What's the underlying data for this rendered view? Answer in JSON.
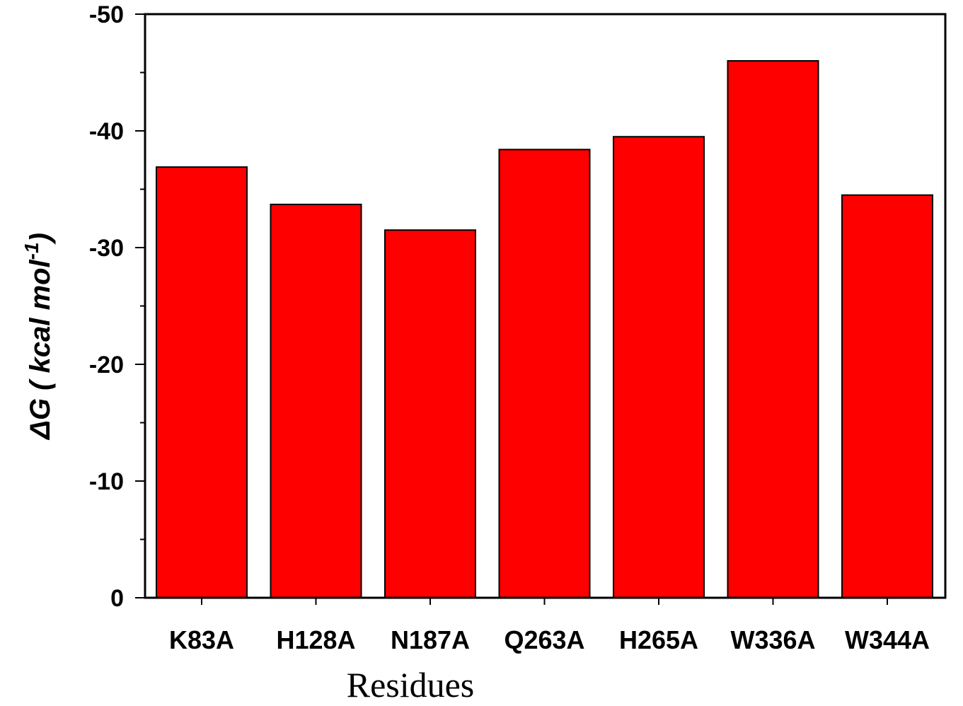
{
  "chart_data": {
    "type": "bar",
    "categories": [
      "K83A",
      "H128A",
      "N187A",
      "Q263A",
      "H265A",
      "W336A",
      "W344A"
    ],
    "series": [
      {
        "values": [
          -36.9,
          -33.7,
          -31.5,
          -38.4,
          -39.5,
          -46.0,
          -34.5
        ]
      }
    ],
    "xlabel": "Residues",
    "ylabel": "ΔG ( kcal mol⁻¹)",
    "ylabel_parts": {
      "main": "ΔG ( kcal mol",
      "sup": "-1",
      "close": ")"
    },
    "ylim": [
      0,
      -50
    ],
    "yticks": [
      0,
      -10,
      -20,
      -30,
      -40,
      -50
    ],
    "ytick_labels": [
      "0",
      "-10",
      "-20",
      "-30",
      "-40",
      "-50"
    ],
    "minor_ticks": true,
    "grid": false,
    "legend": "none",
    "bar_color": "#ff0000",
    "bar_edge_color": "#000000"
  }
}
